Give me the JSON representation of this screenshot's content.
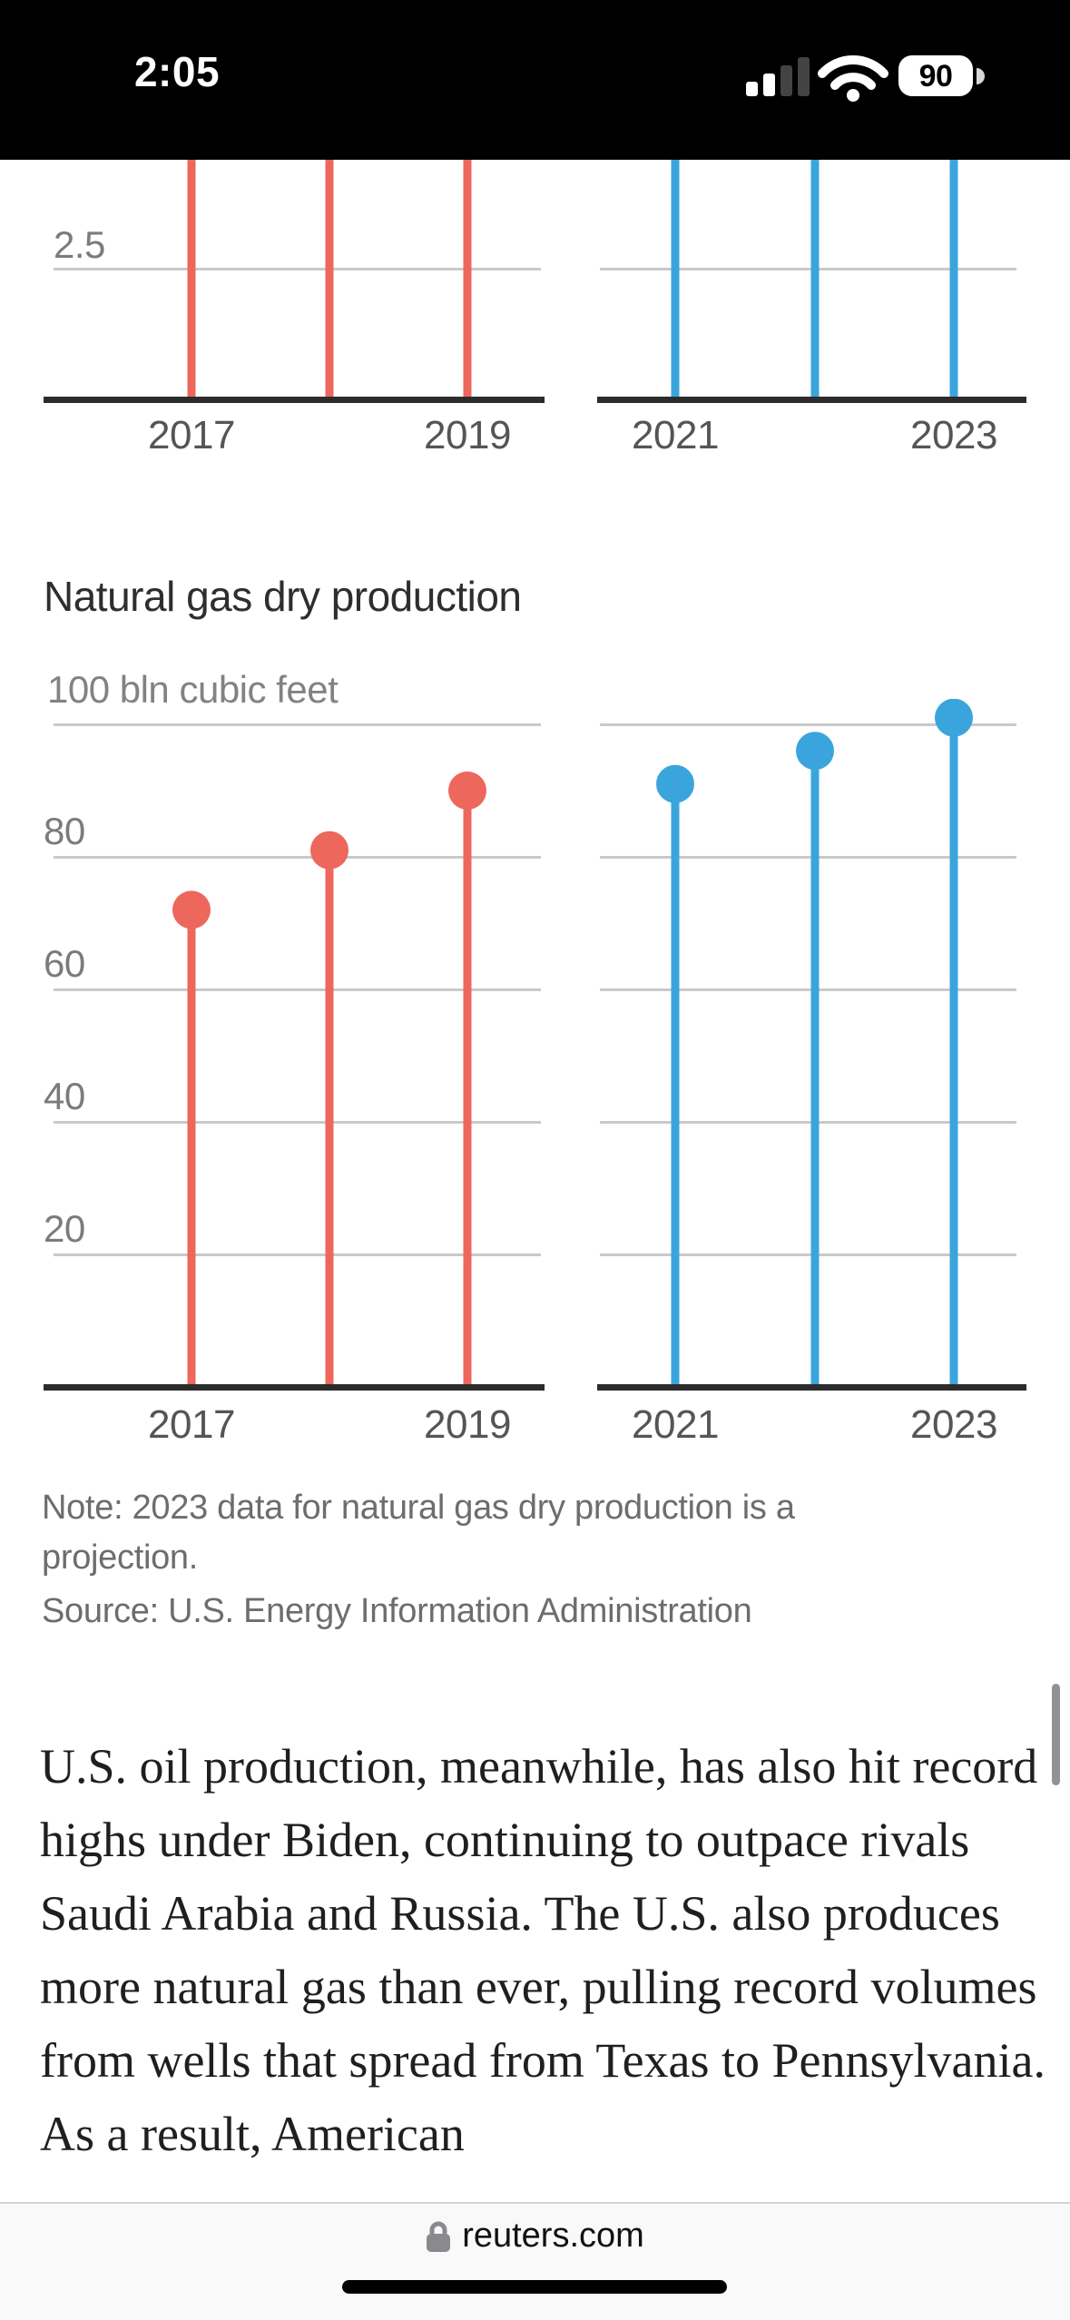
{
  "status_bar": {
    "time": "2:05",
    "battery": "90",
    "icons": [
      "cellular-signal-icon",
      "wifi-icon",
      "battery-icon"
    ]
  },
  "chart_data": [
    {
      "type": "lollipop",
      "id": "top-chart-cropped",
      "note": "chart partially scrolled out of view; only bottom of stems visible",
      "visible_ytick_label": "2.5",
      "series": [
        {
          "name": "left-panel",
          "color": "#ed675c",
          "x": [
            "2017",
            "2018",
            "2019"
          ]
        },
        {
          "name": "right-panel",
          "color": "#3aa5dc",
          "x": [
            "2021",
            "2022",
            "2023"
          ]
        }
      ],
      "x_tick_labels": [
        "2017",
        "2019",
        "2021",
        "2023"
      ],
      "grid": true,
      "legend": "none"
    },
    {
      "type": "lollipop",
      "id": "natural-gas-dry-production",
      "title": "Natural gas dry production",
      "unit_label": "100 bln cubic feet",
      "ylim": [
        0,
        103
      ],
      "yticks": [
        100,
        80,
        60,
        40,
        20
      ],
      "ytick_labels_shown": [
        "80",
        "60",
        "40",
        "20"
      ],
      "grid": true,
      "legend": "none",
      "series": [
        {
          "name": "2017-2019",
          "color": "#ed675c",
          "x": [
            "2017",
            "2018",
            "2019"
          ],
          "values": [
            72,
            81,
            90
          ]
        },
        {
          "name": "2021-2023",
          "color": "#3aa5dc",
          "x": [
            "2021",
            "2022",
            "2023"
          ],
          "values": [
            91,
            96,
            101
          ]
        }
      ],
      "x_tick_labels": [
        "2017",
        "2019",
        "2021",
        "2023"
      ]
    }
  ],
  "note": "Note: 2023 data for natural gas dry production is a projection.",
  "source": "Source: U.S. Energy Information Administration",
  "article_paragraph": "U.S. oil production, meanwhile, has also hit record highs under Biden, continuing to outpace rivals Saudi Arabia and Russia. The U.S. also produces more natural gas than ever, pulling record volumes from wells that spread from Texas to Pennsylvania. As a result, American",
  "browser": {
    "domain": "reuters.com"
  },
  "colors": {
    "red": "#ed675c",
    "blue": "#3aa5dc",
    "gridline": "#c9c9c9",
    "axis": "#2c2c2c",
    "tick_text": "#7b7b7b",
    "year_text": "#555555",
    "title_text": "#2e2e2e",
    "note_text": "#6d6d6d",
    "body_text": "#1f1f1f",
    "status_bar_bg": "#000000",
    "browser_bar_bg": "#f9f9f9"
  }
}
